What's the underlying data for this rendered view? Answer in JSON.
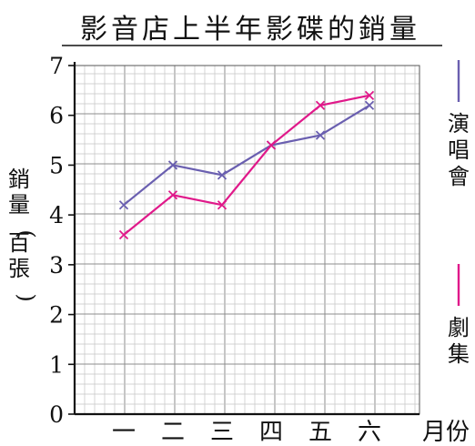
{
  "chart_data": {
    "type": "line",
    "title": "影音店上半年影碟的銷量",
    "ylabel": "銷量(百張)",
    "xlabel": "月份",
    "categories": [
      "一",
      "二",
      "三",
      "四",
      "五",
      "六"
    ],
    "yticks": [
      "0",
      "1",
      "2",
      "3",
      "4",
      "5",
      "6",
      "7"
    ],
    "ylim": [
      0,
      7
    ],
    "grid": true,
    "legend_position": "right",
    "series": [
      {
        "name": "演唱會",
        "color": "#6a5fb0",
        "marker": "x",
        "values": [
          4.2,
          5.0,
          4.8,
          5.4,
          5.6,
          6.2
        ]
      },
      {
        "name": "劇集",
        "color": "#e0198a",
        "marker": "x",
        "values": [
          3.6,
          4.4,
          4.2,
          5.4,
          6.2,
          6.4
        ]
      }
    ]
  }
}
